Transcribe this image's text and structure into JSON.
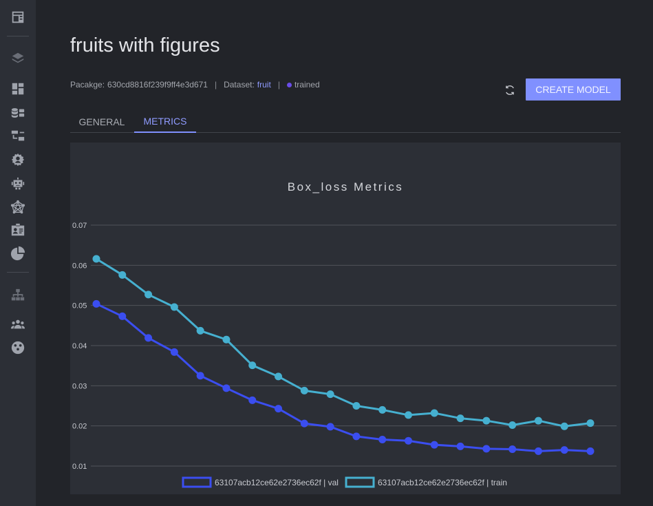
{
  "sidebar": {
    "items": [
      {
        "icon": "dashboard-card-icon"
      },
      {
        "icon": "layers-icon"
      },
      {
        "icon": "grid-layout-icon"
      },
      {
        "icon": "database-icon"
      },
      {
        "icon": "flow-chart-icon"
      },
      {
        "icon": "settings-gear-user-icon"
      },
      {
        "icon": "robot-icon"
      },
      {
        "icon": "network-icon"
      },
      {
        "icon": "id-card-icon"
      },
      {
        "icon": "pie-chart-icon"
      },
      {
        "icon": "hierarchy-icon"
      },
      {
        "icon": "users-group-icon"
      },
      {
        "icon": "palette-icon"
      }
    ]
  },
  "page": {
    "title": "fruits with figures",
    "package_label": "Pacakge:",
    "package_id": "630cd8816f239f9ff4e3d671",
    "separator": "|",
    "dataset_label": "Dataset:",
    "dataset_value": "fruit",
    "status": "trained",
    "status_color": "#6a4de8",
    "create_button": "CREATE MODEL"
  },
  "tabs": [
    {
      "label": "GENERAL",
      "active": false
    },
    {
      "label": "METRICS",
      "active": true
    }
  ],
  "colors": {
    "accent": "#8090ff",
    "series_val": "#3b4ef0",
    "series_train": "#46b0d0"
  },
  "chart_data": {
    "type": "line",
    "title": "Box_loss Metrics",
    "x": [
      0,
      1,
      2,
      3,
      4,
      5,
      6,
      7,
      8,
      9,
      10,
      11,
      12,
      13,
      14,
      15,
      16,
      17,
      18,
      19
    ],
    "ylim": [
      0.008,
      0.072
    ],
    "yticks": [
      "0.07",
      "0.06",
      "0.05",
      "0.04",
      "0.03",
      "0.02",
      "0.01"
    ],
    "ytick_values": [
      0.07,
      0.06,
      0.05,
      0.04,
      0.03,
      0.02,
      0.01
    ],
    "grid": true,
    "legend_position": "bottom",
    "series": [
      {
        "name": "63107acb12ce62e2736ec62f | val",
        "color": "#3b4ef0",
        "values": [
          0.0504,
          0.0473,
          0.0419,
          0.0384,
          0.0325,
          0.0294,
          0.0264,
          0.0243,
          0.0206,
          0.0198,
          0.0174,
          0.0166,
          0.0163,
          0.0153,
          0.0149,
          0.0143,
          0.0142,
          0.0137,
          0.014,
          0.0137
        ]
      },
      {
        "name": "63107acb12ce62e2736ec62f | train",
        "color": "#46b0d0",
        "values": [
          0.0616,
          0.0576,
          0.0527,
          0.0496,
          0.0437,
          0.0415,
          0.0351,
          0.0323,
          0.0288,
          0.0279,
          0.025,
          0.024,
          0.0227,
          0.0232,
          0.0219,
          0.0213,
          0.0202,
          0.0213,
          0.0199,
          0.0207
        ]
      }
    ]
  }
}
